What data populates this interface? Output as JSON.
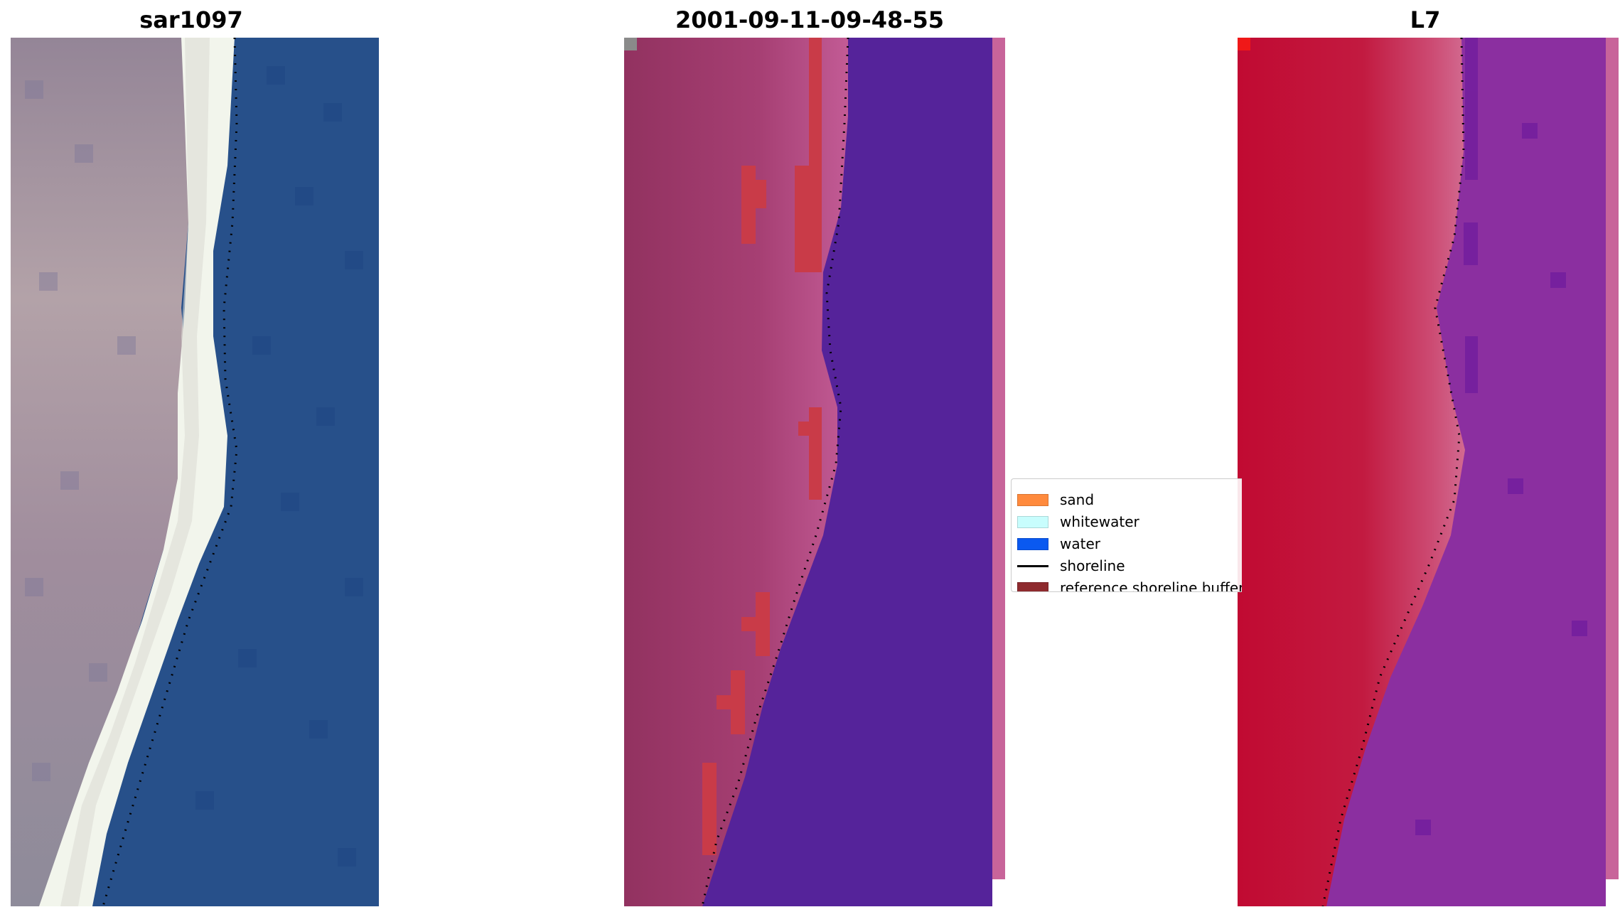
{
  "panels": [
    {
      "title": "sar1097"
    },
    {
      "title": "2001-09-11-09-48-55"
    },
    {
      "title": "L7"
    }
  ],
  "legend": {
    "items": [
      {
        "label": "sand",
        "color": "#ff8a3d",
        "kind": "patch"
      },
      {
        "label": "whitewater",
        "color": "#c8fdfd",
        "kind": "patch"
      },
      {
        "label": "water",
        "color": "#0a59f0",
        "kind": "patch"
      },
      {
        "label": "shoreline",
        "color": "#000000",
        "kind": "line"
      },
      {
        "label": "reference shoreline buffer",
        "color": "#8e2a2e",
        "kind": "patch"
      }
    ]
  },
  "colors": {
    "sar_land": "#a18d9e",
    "sar_white": "#f4f7ee",
    "sar_water": "#27508a",
    "class_land": "#b0477e",
    "class_water": "#55239a",
    "class_buffer": "#c93b48",
    "l7_land": "#c20c35",
    "l7_water": "#8b2fa0",
    "stripe": "#c8649a"
  }
}
